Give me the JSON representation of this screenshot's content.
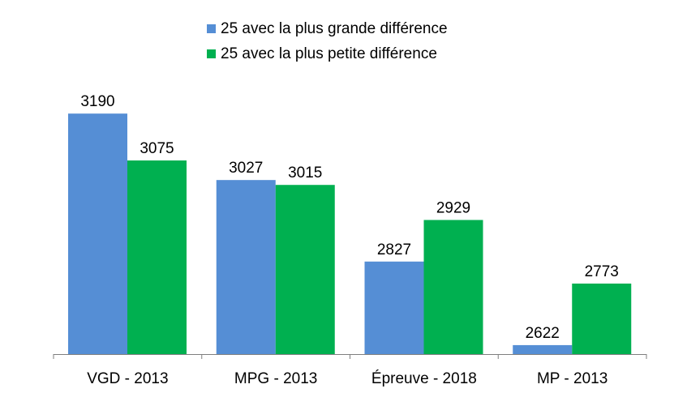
{
  "chart_data": {
    "type": "bar",
    "categories": [
      "VGD - 2013",
      "MPG - 2013",
      "Épreuve - 2018",
      "MP - 2013"
    ],
    "series": [
      {
        "name": "25 avec la plus grande différence",
        "color": "#558ed5",
        "values": [
          3190,
          3027,
          2827,
          2622
        ]
      },
      {
        "name": "25 avec la plus petite différence",
        "color": "#00b050",
        "values": [
          3075,
          3015,
          2929,
          2773
        ]
      }
    ],
    "title": "",
    "xlabel": "",
    "ylabel": "",
    "ylim": [
      2600,
      3250
    ],
    "grid": false,
    "legend_position": "top-center",
    "data_labels": true
  }
}
